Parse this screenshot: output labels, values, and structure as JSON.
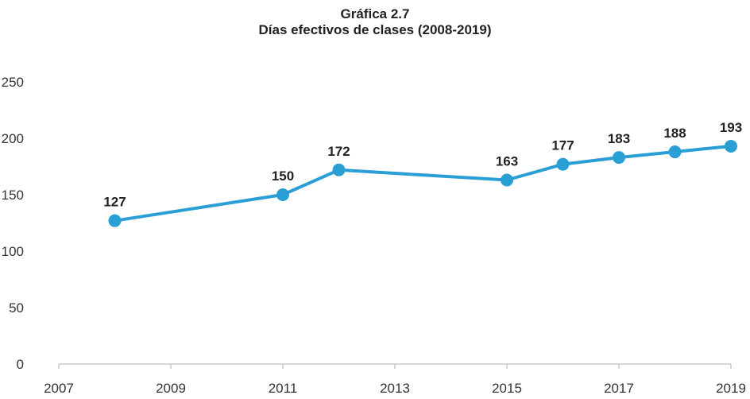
{
  "chart_data": {
    "type": "line",
    "title": "Gráfica 2.7",
    "subtitle": "Días efectivos de clases (2008-2019)",
    "xlabel": "",
    "ylabel": "",
    "x": [
      2008,
      2011,
      2012,
      2015,
      2016,
      2017,
      2018,
      2019
    ],
    "series": [
      {
        "values": [
          127,
          150,
          172,
          163,
          177,
          183,
          188,
          193
        ]
      }
    ],
    "xlim": [
      2007,
      2019
    ],
    "ylim": [
      0,
      250
    ],
    "xticks": [
      2007,
      2009,
      2011,
      2013,
      2015,
      2017,
      2019
    ],
    "yticks": [
      0,
      50,
      100,
      150,
      200,
      250
    ],
    "grid": false,
    "legend": "none",
    "colors": {
      "line": "#2a9fd6",
      "marker": "#2a9fd6"
    }
  }
}
